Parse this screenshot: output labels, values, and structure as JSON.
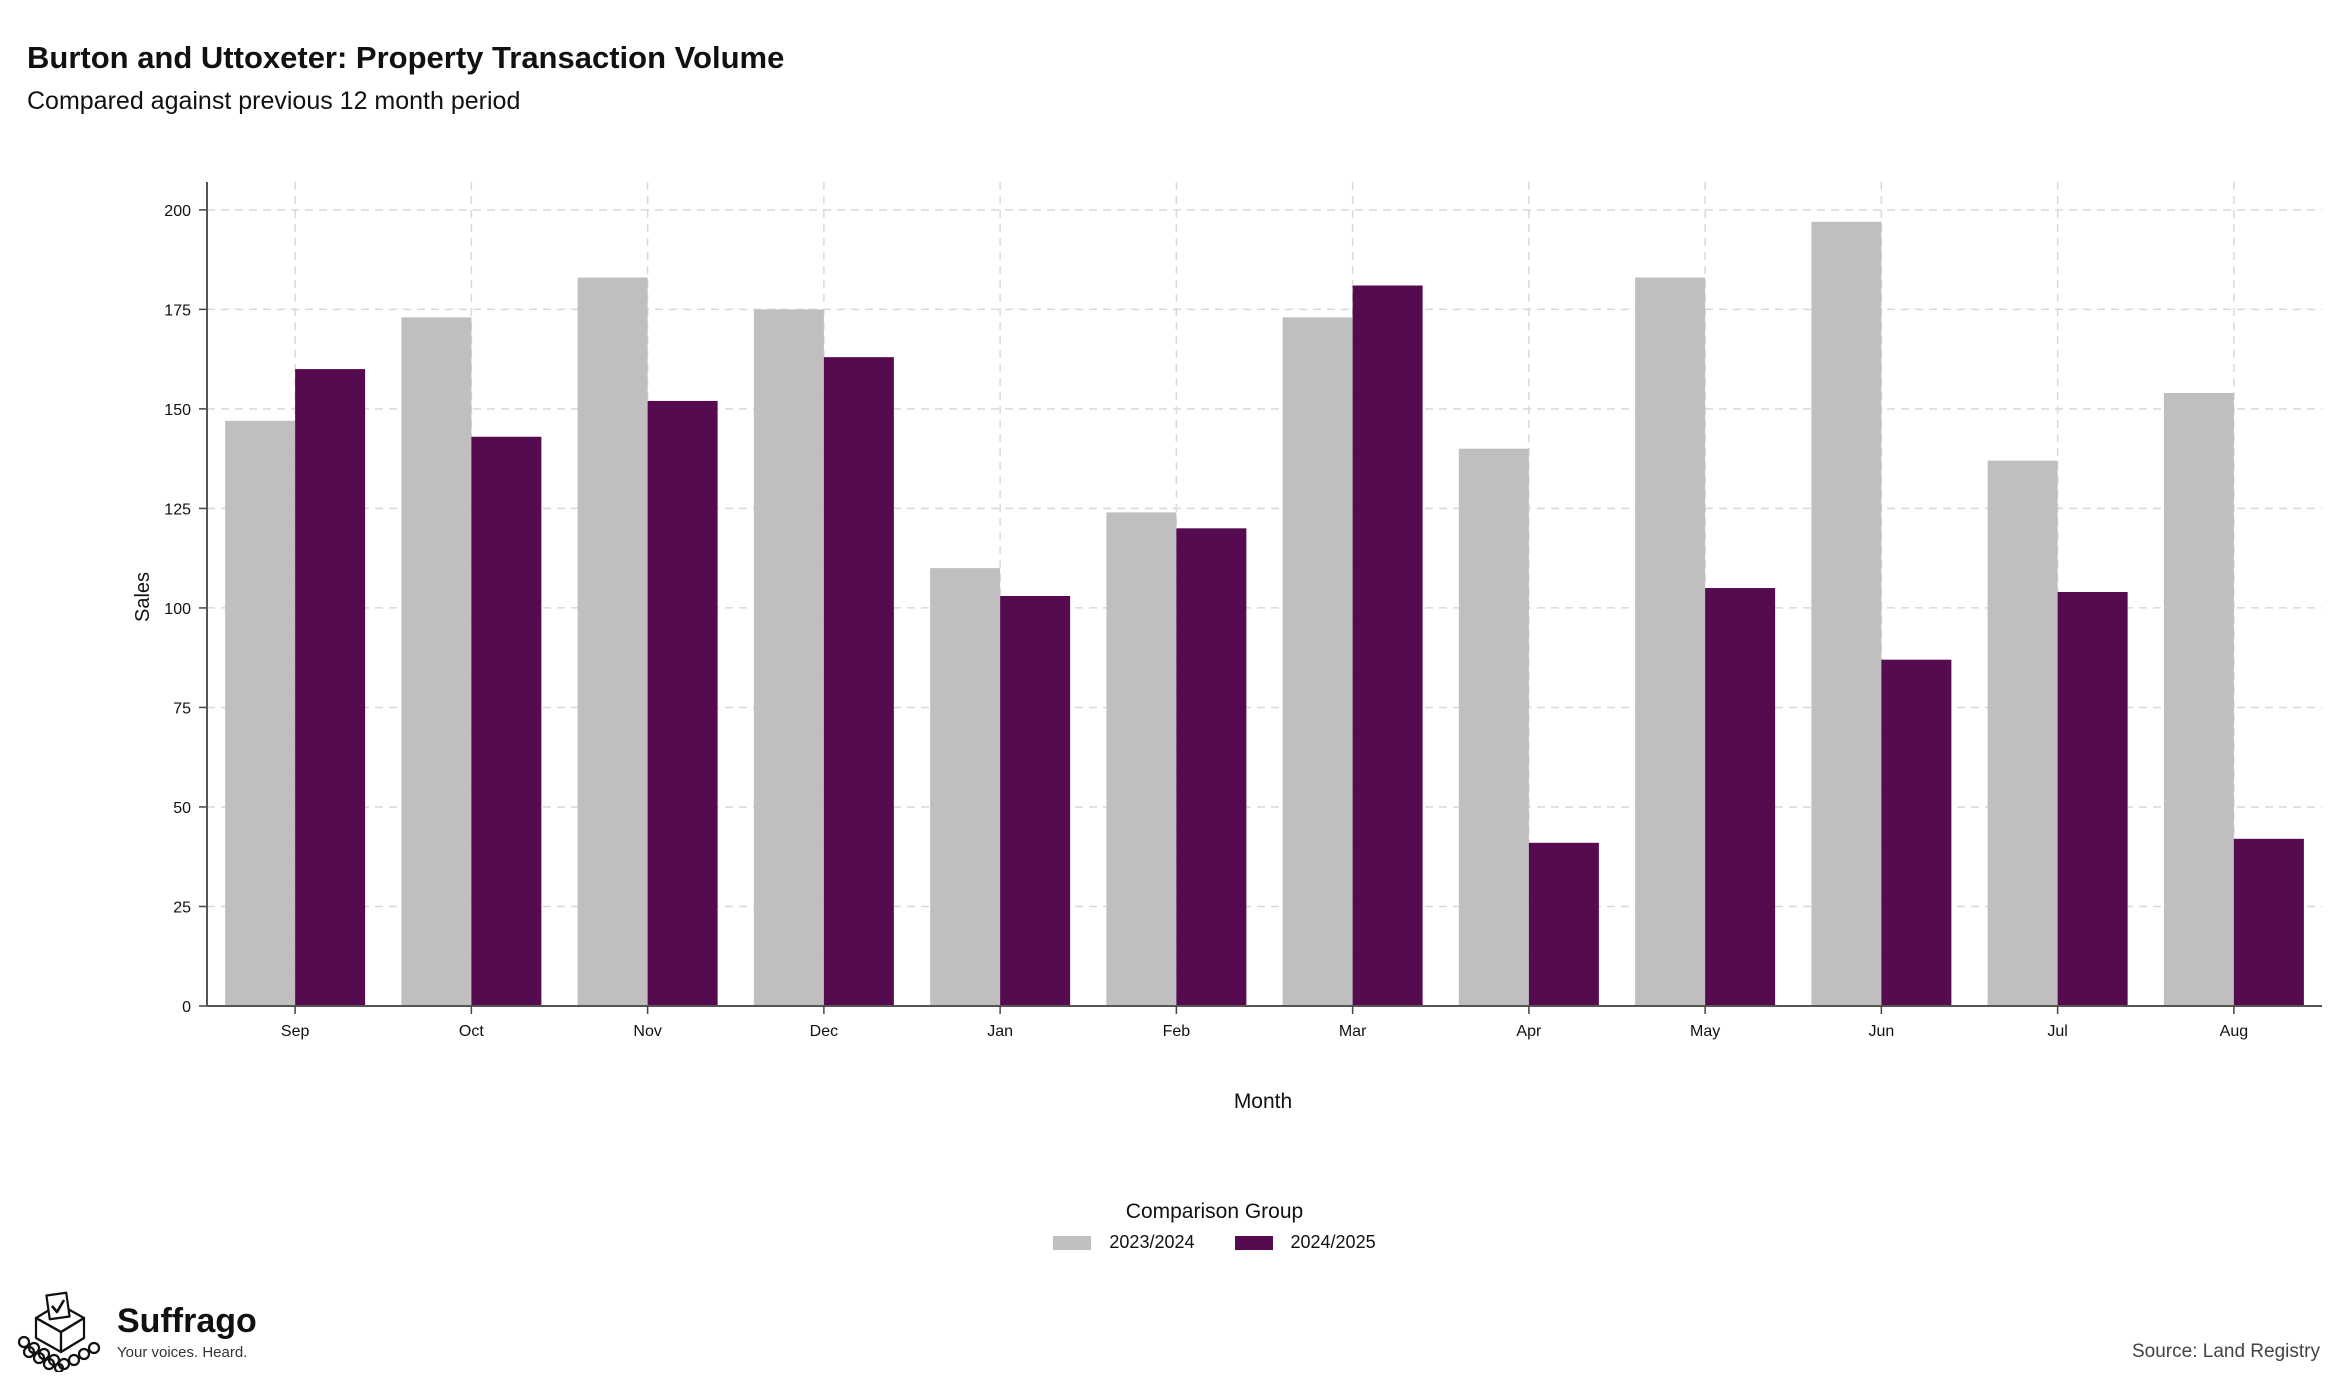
{
  "header": {
    "title": "Burton and Uttoxeter: Property Transaction Volume",
    "subtitle": "Compared against previous 12 month period"
  },
  "chart_data": {
    "type": "bar",
    "categories": [
      "Sep",
      "Oct",
      "Nov",
      "Dec",
      "Jan",
      "Feb",
      "Mar",
      "Apr",
      "May",
      "Jun",
      "Jul",
      "Aug"
    ],
    "series": [
      {
        "name": "2023/2024",
        "color": "#bfbfbf",
        "values": [
          147,
          173,
          183,
          175,
          110,
          124,
          173,
          140,
          183,
          197,
          137,
          154
        ]
      },
      {
        "name": "2024/2025",
        "color": "#560b51",
        "values": [
          160,
          143,
          152,
          163,
          103,
          120,
          181,
          41,
          105,
          87,
          104,
          42
        ]
      }
    ],
    "xlabel": "Month",
    "ylabel": "Sales",
    "ylim": [
      0,
      207
    ],
    "yticks": [
      0,
      25,
      50,
      75,
      100,
      125,
      150,
      175,
      200
    ],
    "grid": true,
    "legend_position": "bottom"
  },
  "legend": {
    "title": "Comparison Group"
  },
  "logo": {
    "name": "Suffrago",
    "tagline": "Your voices. Heard."
  },
  "footer": {
    "source": "Source: Land Registry"
  }
}
